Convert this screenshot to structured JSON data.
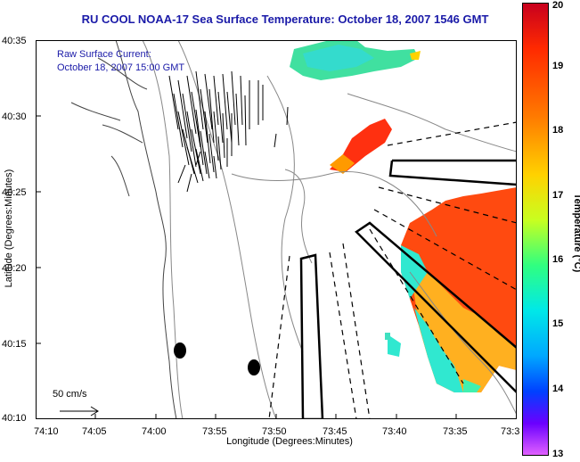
{
  "title": "RU COOL  NOAA-17  Sea Surface Temperature:  October 18, 2007 1546 GMT",
  "overlay": {
    "line1": "Raw Surface Current:",
    "line2": "October 18, 2007 15:00 GMT"
  },
  "scale_label": "50 cm/s",
  "axes": {
    "xlabel": "Longitude (Degrees:Minutes)",
    "ylabel": "Latitude (Degrees:Minutes)",
    "xticks": [
      "74:10",
      "74:05",
      "74:00",
      "73:55",
      "73:50",
      "73:45",
      "73:40",
      "73:35",
      "73:3"
    ],
    "yticks": [
      "40:35",
      "40:30",
      "40:25",
      "40:20",
      "40:15",
      "40:10"
    ]
  },
  "colorbar": {
    "label": "Temperature (°C)",
    "ticks": [
      "20",
      "19",
      "18",
      "17",
      "16",
      "15",
      "14",
      "13"
    ],
    "range": [
      13,
      20
    ],
    "colors": [
      "#c8001e",
      "#ff7a00",
      "#ffd200",
      "#30ff80",
      "#00e8e8",
      "#0040ff",
      "#e060ff"
    ]
  }
}
